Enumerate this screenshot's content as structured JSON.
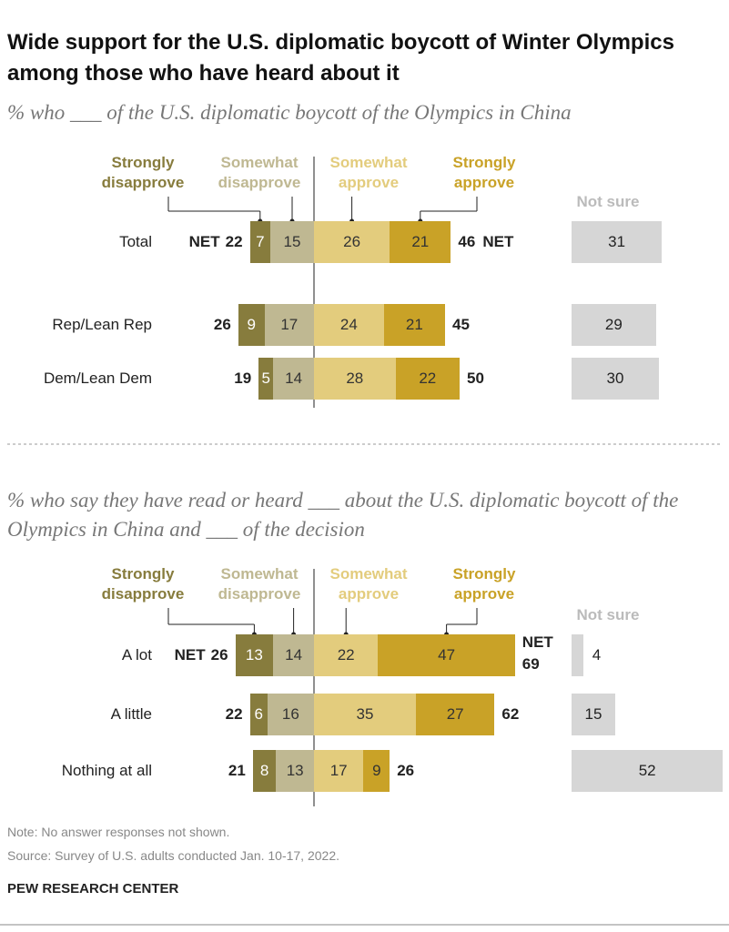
{
  "title": "Wide support for the U.S. diplomatic boycott of Winter Olympics among those who have heard about it",
  "note": "Note: No answer responses not shown.",
  "source": "Source: Survey of U.S. adults conducted Jan. 10-17, 2022.",
  "brand": "PEW RESEARCH CENTER",
  "chart_data": [
    {
      "type": "diverging",
      "subtitle": "% who ___ of the U.S. diplomatic boycott of the Olympics in China",
      "categories": [
        "Total",
        "Rep/Lean Rep",
        "Dem/Lean Dem"
      ],
      "series": [
        {
          "name": "Strongly disapprove",
          "color": "#877c3d",
          "values": [
            7,
            9,
            5
          ]
        },
        {
          "name": "Somewhat disapprove",
          "color": "#bfb892",
          "values": [
            15,
            17,
            14
          ]
        },
        {
          "name": "Somewhat approve",
          "color": "#e3cc7d",
          "values": [
            26,
            24,
            28
          ]
        },
        {
          "name": "Strongly approve",
          "color": "#c9a227",
          "values": [
            21,
            21,
            22
          ]
        }
      ],
      "net_label": "NET",
      "net_disapprove": [
        22,
        26,
        19
      ],
      "net_approve": [
        46,
        45,
        50
      ],
      "not_sure": {
        "name": "Not sure",
        "color": "#d6d6d6",
        "values": [
          31,
          29,
          30
        ]
      }
    },
    {
      "type": "diverging",
      "subtitle": "% who say they have read or heard ___ about the U.S. diplomatic boycott of the Olympics in China and ___ of the decision",
      "categories": [
        "A lot",
        "A little",
        "Nothing at all"
      ],
      "series": [
        {
          "name": "Strongly disapprove",
          "color": "#877c3d",
          "values": [
            13,
            6,
            8
          ]
        },
        {
          "name": "Somewhat disapprove",
          "color": "#bfb892",
          "values": [
            14,
            16,
            13
          ]
        },
        {
          "name": "Somewhat approve",
          "color": "#e3cc7d",
          "values": [
            22,
            35,
            17
          ]
        },
        {
          "name": "Strongly approve",
          "color": "#c9a227",
          "values": [
            47,
            27,
            9
          ]
        }
      ],
      "net_label": "NET",
      "net_disapprove": [
        26,
        22,
        21
      ],
      "net_approve": [
        69,
        62,
        26
      ],
      "not_sure": {
        "name": "Not sure",
        "color": "#d6d6d6",
        "values": [
          4,
          15,
          52
        ]
      }
    }
  ]
}
